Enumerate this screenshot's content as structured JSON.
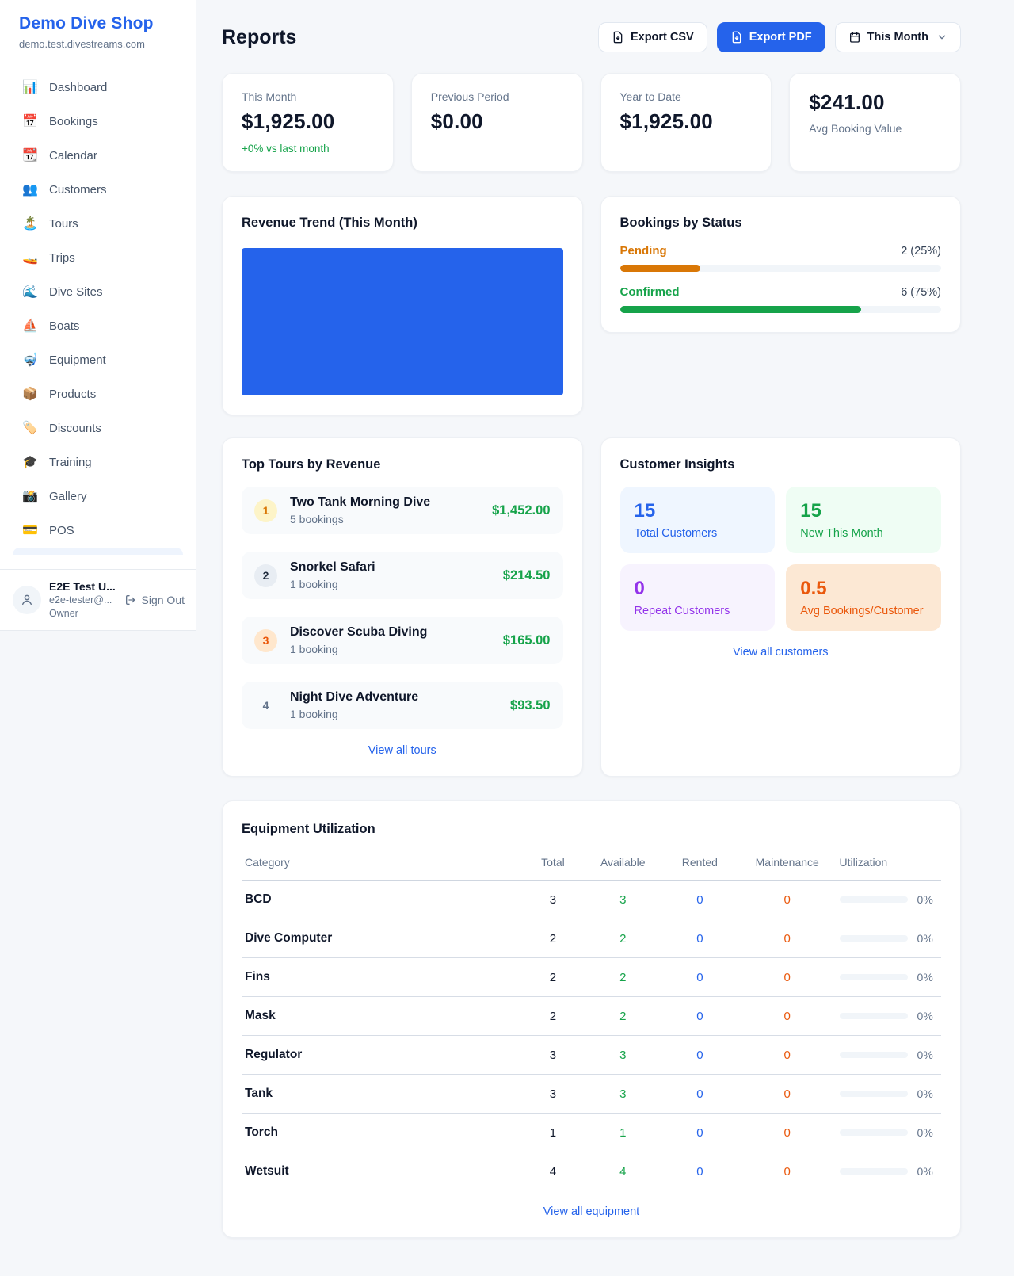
{
  "sidebar": {
    "shop_name": "Demo Dive Shop",
    "domain": "demo.test.divestreams.com",
    "items": [
      {
        "icon": "📊",
        "label": "Dashboard"
      },
      {
        "icon": "📅",
        "label": "Bookings"
      },
      {
        "icon": "📆",
        "label": "Calendar"
      },
      {
        "icon": "👥",
        "label": "Customers"
      },
      {
        "icon": "🏝️",
        "label": "Tours"
      },
      {
        "icon": "🚤",
        "label": "Trips"
      },
      {
        "icon": "🌊",
        "label": "Dive Sites"
      },
      {
        "icon": "⛵",
        "label": "Boats"
      },
      {
        "icon": "🤿",
        "label": "Equipment"
      },
      {
        "icon": "📦",
        "label": "Products"
      },
      {
        "icon": "🏷️",
        "label": "Discounts"
      },
      {
        "icon": "🎓",
        "label": "Training"
      },
      {
        "icon": "📸",
        "label": "Gallery"
      },
      {
        "icon": "💳",
        "label": "POS"
      }
    ],
    "user": {
      "name": "E2E Test U...",
      "email": "e2e-tester@...",
      "role": "Owner",
      "sign_out_label": "Sign Out"
    }
  },
  "header": {
    "title": "Reports",
    "export_csv_label": "Export CSV",
    "export_pdf_label": "Export PDF",
    "period_label": "This Month"
  },
  "stats": [
    {
      "label": "This Month",
      "value": "$1,925.00",
      "delta": "+0% vs last month"
    },
    {
      "label": "Previous Period",
      "value": "$0.00"
    },
    {
      "label": "Year to Date",
      "value": "$1,925.00"
    },
    {
      "label": "Avg Booking Value",
      "value": "$241.00"
    }
  ],
  "revenue_trend": {
    "title": "Revenue Trend (This Month)"
  },
  "bookings_by_status": {
    "title": "Bookings by Status",
    "rows": [
      {
        "label": "Pending",
        "value": "2 (25%)",
        "count": 2,
        "percent": 25,
        "color": "#d97706"
      },
      {
        "label": "Confirmed",
        "value": "6 (75%)",
        "count": 6,
        "percent": 75,
        "color": "#16a34a"
      }
    ]
  },
  "top_tours": {
    "title": "Top Tours by Revenue",
    "items": [
      {
        "rank": "1",
        "name": "Two Tank Morning Dive",
        "bookings": "5 bookings",
        "revenue": "$1,452.00"
      },
      {
        "rank": "2",
        "name": "Snorkel Safari",
        "bookings": "1 booking",
        "revenue": "$214.50"
      },
      {
        "rank": "3",
        "name": "Discover Scuba Diving",
        "bookings": "1 booking",
        "revenue": "$165.00"
      },
      {
        "rank": "4",
        "name": "Night Dive Adventure",
        "bookings": "1 booking",
        "revenue": "$93.50"
      }
    ],
    "view_all_label": "View all tours"
  },
  "customer_insights": {
    "title": "Customer Insights",
    "tiles": [
      {
        "value": "15",
        "label": "Total Customers",
        "color": "#2563eb"
      },
      {
        "value": "15",
        "label": "New This Month",
        "color": "#16a34a"
      },
      {
        "value": "0",
        "label": "Repeat Customers",
        "color": "#9333ea"
      },
      {
        "value": "0.5",
        "label": "Avg Bookings/Customer",
        "color": "#ea580c"
      }
    ],
    "view_all_label": "View all customers"
  },
  "equipment": {
    "title": "Equipment Utilization",
    "columns": [
      "Category",
      "Total",
      "Available",
      "Rented",
      "Maintenance",
      "Utilization"
    ],
    "rows": [
      {
        "category": "BCD",
        "total": "3",
        "available": "3",
        "rented": "0",
        "maintenance": "0",
        "utilization": "0%"
      },
      {
        "category": "Dive Computer",
        "total": "2",
        "available": "2",
        "rented": "0",
        "maintenance": "0",
        "utilization": "0%"
      },
      {
        "category": "Fins",
        "total": "2",
        "available": "2",
        "rented": "0",
        "maintenance": "0",
        "utilization": "0%"
      },
      {
        "category": "Mask",
        "total": "2",
        "available": "2",
        "rented": "0",
        "maintenance": "0",
        "utilization": "0%"
      },
      {
        "category": "Regulator",
        "total": "3",
        "available": "3",
        "rented": "0",
        "maintenance": "0",
        "utilization": "0%"
      },
      {
        "category": "Tank",
        "total": "3",
        "available": "3",
        "rented": "0",
        "maintenance": "0",
        "utilization": "0%"
      },
      {
        "category": "Torch",
        "total": "1",
        "available": "1",
        "rented": "0",
        "maintenance": "0",
        "utilization": "0%"
      },
      {
        "category": "Wetsuit",
        "total": "4",
        "available": "4",
        "rented": "0",
        "maintenance": "0",
        "utilization": "0%"
      }
    ],
    "view_all_label": "View all equipment"
  },
  "colors": {
    "accent": "#2563eb",
    "positive": "#16a34a",
    "pending": "#d97706",
    "confirmed": "#16a34a",
    "maintenance": "#ea580c",
    "repeat": "#9333ea",
    "chart_fill": "#2563eb"
  }
}
